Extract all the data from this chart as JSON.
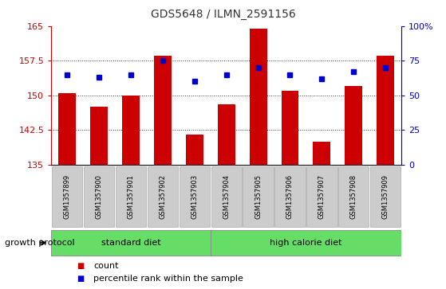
{
  "title": "GDS5648 / ILMN_2591156",
  "samples": [
    "GSM1357899",
    "GSM1357900",
    "GSM1357901",
    "GSM1357902",
    "GSM1357903",
    "GSM1357904",
    "GSM1357905",
    "GSM1357906",
    "GSM1357907",
    "GSM1357908",
    "GSM1357909"
  ],
  "counts": [
    150.5,
    147.5,
    150.0,
    158.5,
    141.5,
    148.0,
    164.5,
    151.0,
    140.0,
    152.0,
    158.5
  ],
  "percentile": [
    65,
    63,
    65,
    75,
    60,
    65,
    70,
    65,
    62,
    67,
    70
  ],
  "y_min": 135,
  "y_max": 165,
  "y_ticks": [
    135,
    142.5,
    150,
    157.5,
    165
  ],
  "y_right_ticks": [
    0,
    25,
    50,
    75,
    100
  ],
  "bar_color": "#cc0000",
  "dot_color": "#0000cc",
  "bar_width": 0.55,
  "std_diet_range": [
    0,
    4
  ],
  "hcal_diet_range": [
    5,
    10
  ],
  "group_color": "#66dd66",
  "group_label": "growth protocol",
  "label_box_color": "#cccccc",
  "title_color": "#333333",
  "left_axis_color": "#cc0000",
  "right_axis_color": "#0000cc",
  "grid_color": "#333333"
}
